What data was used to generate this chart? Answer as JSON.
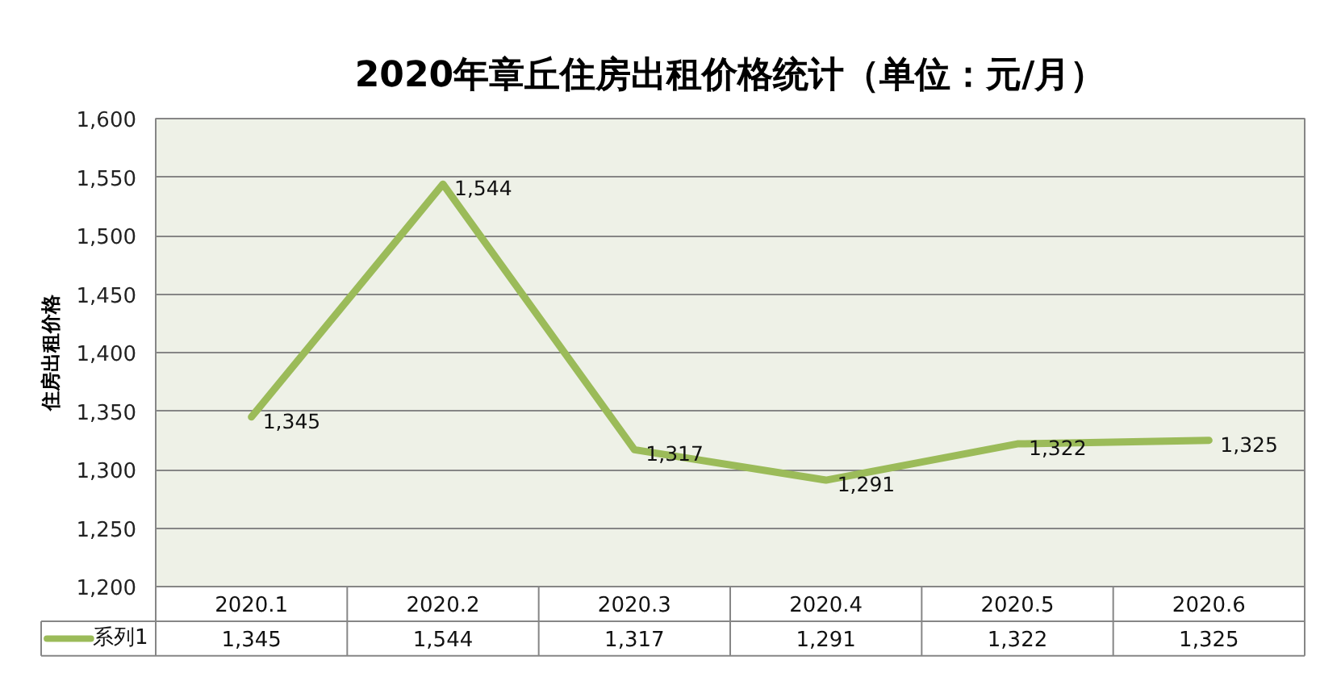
{
  "chart_data": {
    "type": "line",
    "title": "2020年章丘住房出租价格统计（单位：元/月）",
    "ylabel": "住房出租价格",
    "categories": [
      "2020.1",
      "2020.2",
      "2020.3",
      "2020.4",
      "2020.5",
      "2020.6"
    ],
    "series": [
      {
        "name": "系列1",
        "color": "#9bbb59",
        "values": [
          1345,
          1544,
          1317,
          1291,
          1322,
          1325
        ],
        "value_labels": [
          "1,345",
          "1,544",
          "1,317",
          "1,291",
          "1,322",
          "1,325"
        ]
      }
    ],
    "ylim": [
      1200,
      1600
    ],
    "yticks": [
      {
        "value": 1200,
        "label": "1,200"
      },
      {
        "value": 1250,
        "label": "1,250"
      },
      {
        "value": 1300,
        "label": "1,300"
      },
      {
        "value": 1350,
        "label": "1,350"
      },
      {
        "value": 1400,
        "label": "1,400"
      },
      {
        "value": 1450,
        "label": "1,450"
      },
      {
        "value": 1500,
        "label": "1,500"
      },
      {
        "value": 1550,
        "label": "1,550"
      },
      {
        "value": 1600,
        "label": "1,600"
      }
    ],
    "grid": "y",
    "legend": "bottom left"
  }
}
